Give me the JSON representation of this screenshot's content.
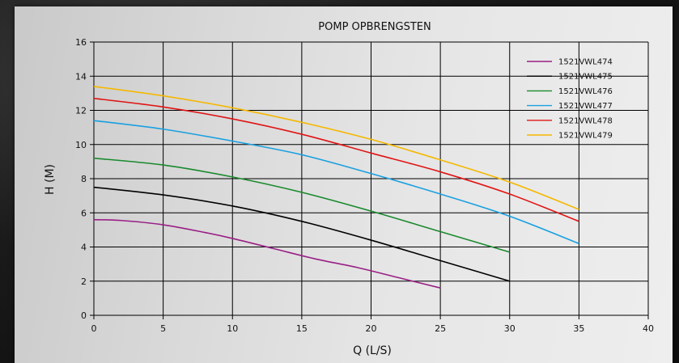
{
  "chart_data": {
    "type": "line",
    "title": "POMP OPBRENGSTEN",
    "xlabel": "Q (L/S)",
    "ylabel": "H (M)",
    "xlim": [
      0,
      40
    ],
    "ylim": [
      0,
      16
    ],
    "xticks": [
      0,
      5,
      10,
      15,
      20,
      25,
      30,
      35,
      40
    ],
    "yticks": [
      0,
      2,
      4,
      6,
      8,
      10,
      12,
      14,
      16
    ],
    "grid": true,
    "legend_position": "top-right",
    "series": [
      {
        "name": "1521VWL474",
        "color": "#9a1f86",
        "x": [
          0,
          2,
          5,
          8,
          10,
          13,
          16,
          19,
          22,
          25
        ],
        "y": [
          5.6,
          5.55,
          5.3,
          4.85,
          4.5,
          3.9,
          3.3,
          2.8,
          2.2,
          1.6
        ]
      },
      {
        "name": "1521VWL475",
        "color": "#000000",
        "x": [
          0,
          5,
          10,
          15,
          20,
          25,
          30
        ],
        "y": [
          7.5,
          7.05,
          6.4,
          5.5,
          4.4,
          3.2,
          2.0
        ]
      },
      {
        "name": "1521VWL476",
        "color": "#1a8a2e",
        "x": [
          0,
          5,
          10,
          15,
          20,
          25,
          30
        ],
        "y": [
          9.2,
          8.8,
          8.1,
          7.2,
          6.1,
          4.9,
          3.7
        ]
      },
      {
        "name": "1521VWL477",
        "color": "#1aa0e0",
        "x": [
          0,
          5,
          10,
          15,
          20,
          25,
          30,
          35
        ],
        "y": [
          11.4,
          10.9,
          10.2,
          9.4,
          8.3,
          7.1,
          5.8,
          4.2
        ]
      },
      {
        "name": "1521VWL478",
        "color": "#e01515",
        "x": [
          0,
          5,
          10,
          15,
          20,
          25,
          30,
          35
        ],
        "y": [
          12.7,
          12.2,
          11.5,
          10.6,
          9.5,
          8.4,
          7.1,
          5.5
        ]
      },
      {
        "name": "1521VWL479",
        "color": "#f5b800",
        "x": [
          0,
          5,
          10,
          15,
          20,
          25,
          30,
          35
        ],
        "y": [
          13.4,
          12.85,
          12.15,
          11.3,
          10.3,
          9.1,
          7.8,
          6.2
        ]
      }
    ]
  }
}
